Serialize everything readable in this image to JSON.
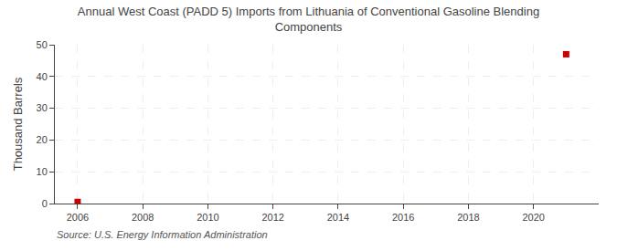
{
  "chart_data": {
    "type": "scatter",
    "title": "Annual West Coast (PADD 5) Imports from Lithuania of Conventional Gasoline Blending\nComponents",
    "ylabel": "Thousand Barrels",
    "annotations": [
      "Source: U.S. Energy Information Administration"
    ],
    "x": [
      2006,
      2021
    ],
    "values": [
      0.5,
      47
    ],
    "color": "#cc0000",
    "marker": "square",
    "xlim": [
      2005.3,
      2022.0
    ],
    "ylim": [
      0,
      50
    ],
    "xticks": [
      2006,
      2008,
      2010,
      2012,
      2014,
      2016,
      2018,
      2020
    ],
    "yticks": [
      0,
      10,
      20,
      30,
      40,
      50
    ],
    "grid": true
  }
}
